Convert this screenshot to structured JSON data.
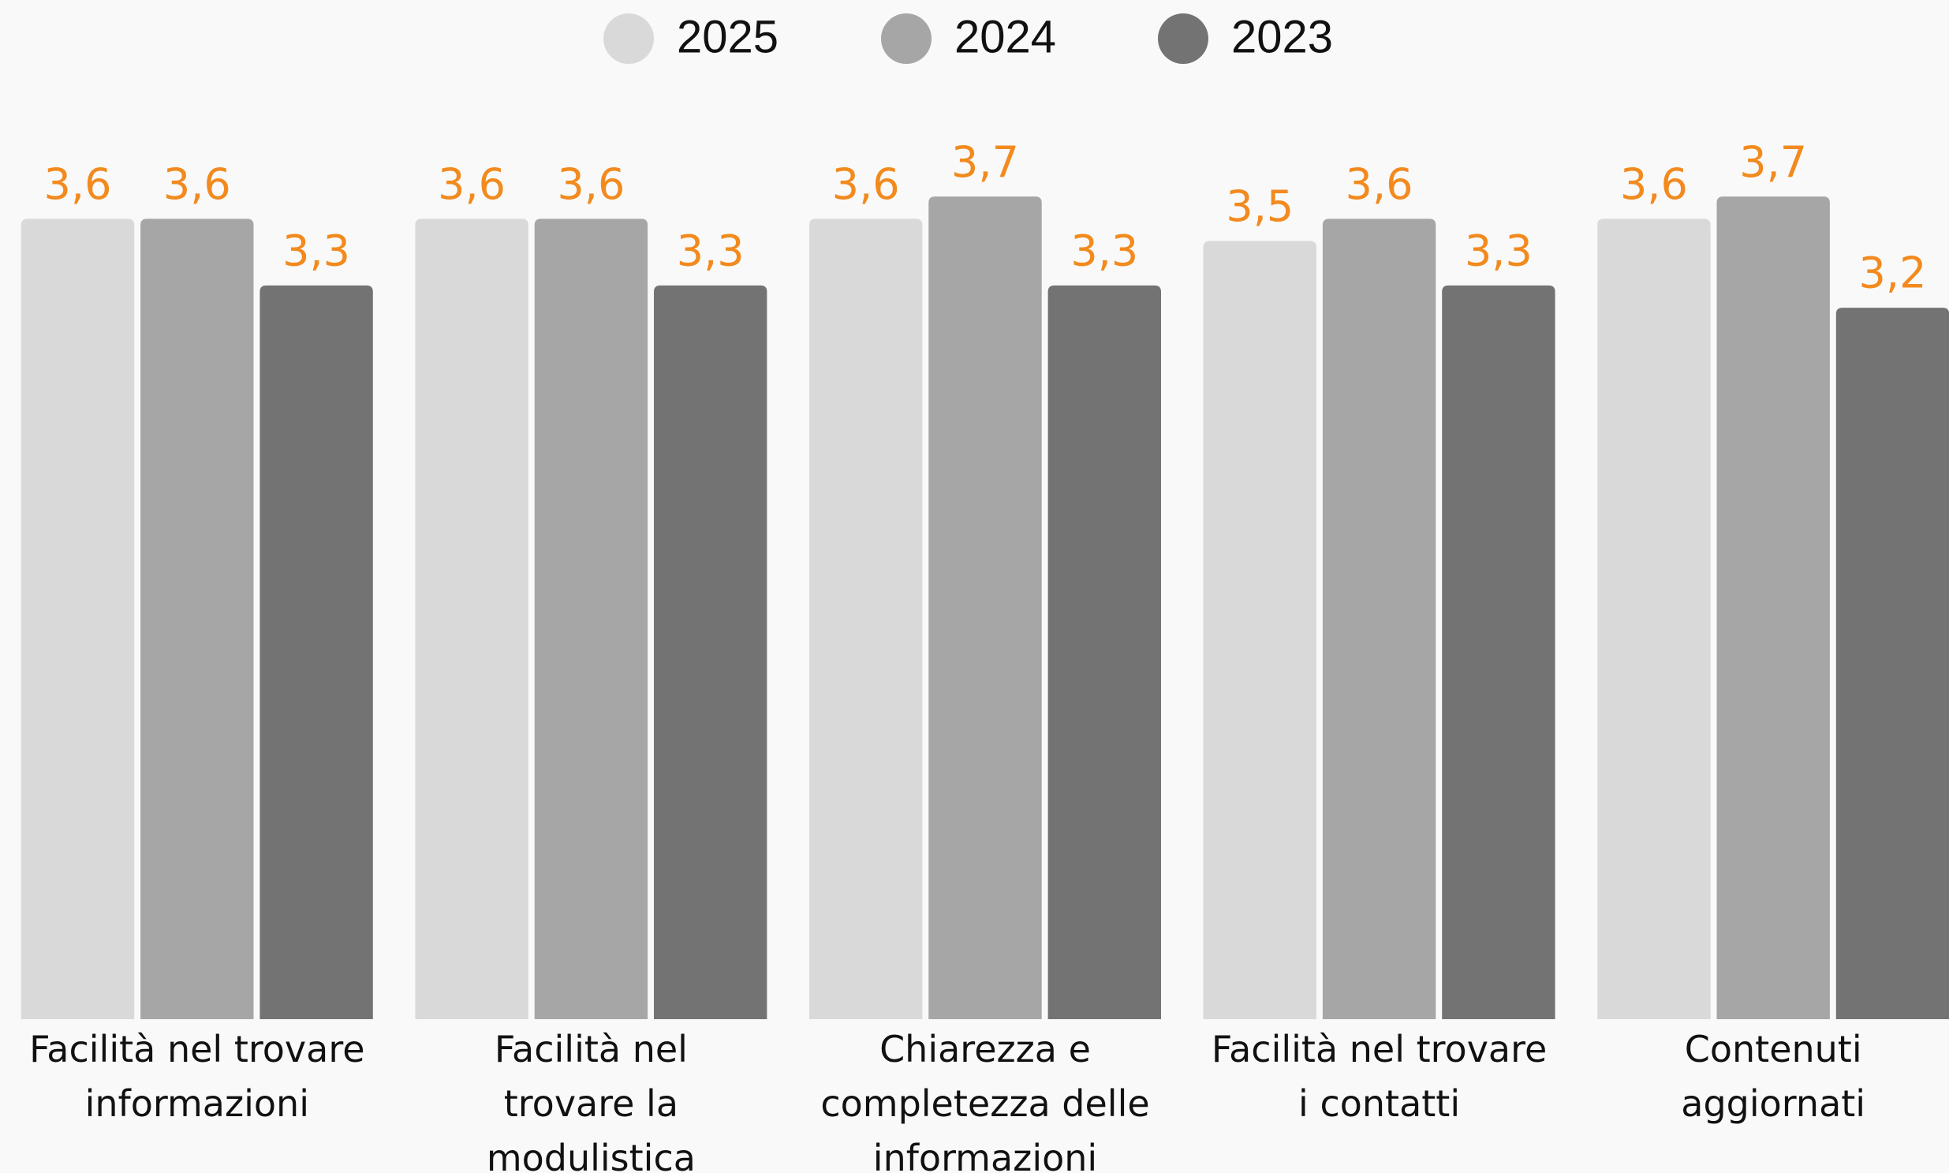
{
  "chart_data": {
    "type": "bar",
    "categories": [
      "Facilità nel trovare\ninformazioni",
      "Facilità nel\ntrovare la\nmodulistica",
      "Chiarezza e\ncompletezza delle\ninformazioni",
      "Facilità nel trovare\ni contatti",
      "Contenuti\naggiornati"
    ],
    "series": [
      {
        "name": "2025",
        "color": "#d9d9d9",
        "values": [
          3.6,
          3.6,
          3.6,
          3.5,
          3.6
        ],
        "value_labels": [
          "3,6",
          "3,6",
          "3,6",
          "3,5",
          "3,6"
        ]
      },
      {
        "name": "2024",
        "color": "#a6a6a6",
        "values": [
          3.6,
          3.6,
          3.7,
          3.6,
          3.7
        ],
        "value_labels": [
          "3,6",
          "3,6",
          "3,7",
          "3,6",
          "3,7"
        ]
      },
      {
        "name": "2023",
        "color": "#737373",
        "values": [
          3.3,
          3.3,
          3.3,
          3.3,
          3.2
        ],
        "value_labels": [
          "3,3",
          "3,3",
          "3,3",
          "3,3",
          "3,2"
        ]
      }
    ],
    "ylim": [
      0,
      4
    ],
    "label_color": "#f28a1e",
    "legend": "top"
  }
}
